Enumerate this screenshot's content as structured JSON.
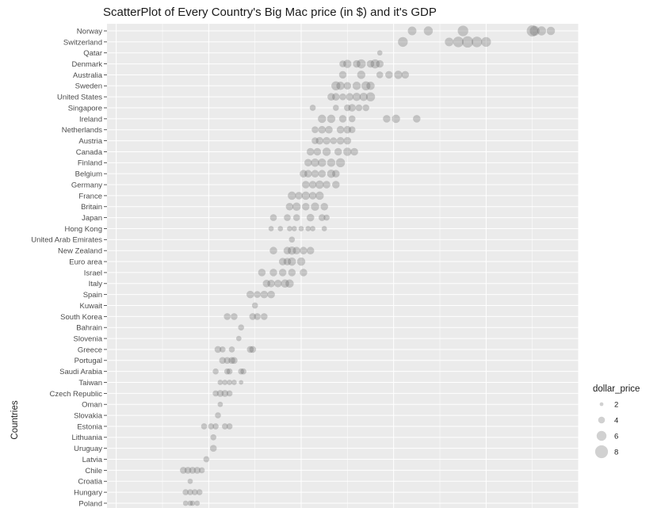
{
  "chart_data": {
    "type": "scatter",
    "title": "ScatterPlot of Every Country's Big Mac price (in $) and it's GDP",
    "xlabel": "",
    "ylabel": "Countries",
    "x_scale": {
      "min": 8000,
      "max": 110000,
      "gridlines": [
        10000,
        30000,
        50000,
        70000,
        90000,
        110000
      ]
    },
    "grid": true,
    "colors": {
      "panel": "#ebebeb",
      "grid": "#ffffff",
      "point": "#505050",
      "legend_point": "#bdbdbd"
    },
    "size_legend": {
      "title": "dollar_price",
      "values": [
        2,
        4,
        6,
        8
      ]
    },
    "categories": [
      "Norway",
      "Switzerland",
      "Qatar",
      "Denmark",
      "Australia",
      "Sweden",
      "United States",
      "Singapore",
      "Ireland",
      "Netherlands",
      "Austria",
      "Canada",
      "Finland",
      "Belgium",
      "Germany",
      "France",
      "Britain",
      "Japan",
      "Hong Kong",
      "United Arab Emirates",
      "New Zealand",
      "Euro area",
      "Israel",
      "Italy",
      "Spain",
      "Kuwait",
      "South Korea",
      "Bahrain",
      "Slovenia",
      "Greece",
      "Portugal",
      "Saudi Arabia",
      "Taiwan",
      "Czech Republic",
      "Oman",
      "Slovakia",
      "Estonia",
      "Lithuania",
      "Uruguay",
      "Latvia",
      "Chile",
      "Croatia",
      "Hungary",
      "Poland"
    ],
    "points": [
      {
        "c": "Norway",
        "gdp": 74000,
        "price": 5.2
      },
      {
        "c": "Norway",
        "gdp": 77500,
        "price": 5.5
      },
      {
        "c": "Norway",
        "gdp": 85000,
        "price": 6.5
      },
      {
        "c": "Norway",
        "gdp": 100000,
        "price": 7.0
      },
      {
        "c": "Norway",
        "gdp": 100500,
        "price": 6.0
      },
      {
        "c": "Norway",
        "gdp": 102000,
        "price": 5.5
      },
      {
        "c": "Norway",
        "gdp": 104000,
        "price": 5.0
      },
      {
        "c": "Switzerland",
        "gdp": 72000,
        "price": 6.0
      },
      {
        "c": "Switzerland",
        "gdp": 82000,
        "price": 5.2
      },
      {
        "c": "Switzerland",
        "gdp": 84000,
        "price": 6.5
      },
      {
        "c": "Switzerland",
        "gdp": 86000,
        "price": 7.0
      },
      {
        "c": "Switzerland",
        "gdp": 88000,
        "price": 6.5
      },
      {
        "c": "Switzerland",
        "gdp": 90000,
        "price": 6.0
      },
      {
        "c": "Qatar",
        "gdp": 67000,
        "price": 3.0
      },
      {
        "c": "Denmark",
        "gdp": 59000,
        "price": 4.0
      },
      {
        "c": "Denmark",
        "gdp": 60000,
        "price": 5.0
      },
      {
        "c": "Denmark",
        "gdp": 62000,
        "price": 4.5
      },
      {
        "c": "Denmark",
        "gdp": 63000,
        "price": 5.5
      },
      {
        "c": "Denmark",
        "gdp": 65000,
        "price": 4.5
      },
      {
        "c": "Denmark",
        "gdp": 66000,
        "price": 5.5
      },
      {
        "c": "Denmark",
        "gdp": 67000,
        "price": 4.5
      },
      {
        "c": "Australia",
        "gdp": 59000,
        "price": 4.5
      },
      {
        "c": "Australia",
        "gdp": 63000,
        "price": 5.0
      },
      {
        "c": "Australia",
        "gdp": 67000,
        "price": 4.0
      },
      {
        "c": "Australia",
        "gdp": 69000,
        "price": 4.5
      },
      {
        "c": "Australia",
        "gdp": 71000,
        "price": 5.0
      },
      {
        "c": "Australia",
        "gdp": 72500,
        "price": 4.5
      },
      {
        "c": "Sweden",
        "gdp": 57500,
        "price": 5.5
      },
      {
        "c": "Sweden",
        "gdp": 58500,
        "price": 5.0
      },
      {
        "c": "Sweden",
        "gdp": 60000,
        "price": 4.5
      },
      {
        "c": "Sweden",
        "gdp": 62000,
        "price": 5.0
      },
      {
        "c": "Sweden",
        "gdp": 64000,
        "price": 5.5
      },
      {
        "c": "Sweden",
        "gdp": 65000,
        "price": 5.0
      },
      {
        "c": "United States",
        "gdp": 56500,
        "price": 4.5
      },
      {
        "c": "United States",
        "gdp": 57500,
        "price": 4.5
      },
      {
        "c": "United States",
        "gdp": 59000,
        "price": 4.0
      },
      {
        "c": "United States",
        "gdp": 60500,
        "price": 4.5
      },
      {
        "c": "United States",
        "gdp": 62000,
        "price": 5.0
      },
      {
        "c": "United States",
        "gdp": 63500,
        "price": 5.0
      },
      {
        "c": "United States",
        "gdp": 65000,
        "price": 5.5
      },
      {
        "c": "Singapore",
        "gdp": 52500,
        "price": 3.5
      },
      {
        "c": "Singapore",
        "gdp": 57500,
        "price": 3.5
      },
      {
        "c": "Singapore",
        "gdp": 60000,
        "price": 4.0
      },
      {
        "c": "Singapore",
        "gdp": 61000,
        "price": 4.5
      },
      {
        "c": "Singapore",
        "gdp": 62500,
        "price": 4.0
      },
      {
        "c": "Singapore",
        "gdp": 64000,
        "price": 4.0
      },
      {
        "c": "Ireland",
        "gdp": 54500,
        "price": 5.0
      },
      {
        "c": "Ireland",
        "gdp": 56500,
        "price": 5.0
      },
      {
        "c": "Ireland",
        "gdp": 59000,
        "price": 4.5
      },
      {
        "c": "Ireland",
        "gdp": 61000,
        "price": 4.0
      },
      {
        "c": "Ireland",
        "gdp": 68500,
        "price": 4.5
      },
      {
        "c": "Ireland",
        "gdp": 70500,
        "price": 5.0
      },
      {
        "c": "Ireland",
        "gdp": 75000,
        "price": 4.5
      },
      {
        "c": "Netherlands",
        "gdp": 53000,
        "price": 4.0
      },
      {
        "c": "Netherlands",
        "gdp": 54500,
        "price": 4.5
      },
      {
        "c": "Netherlands",
        "gdp": 56000,
        "price": 4.5
      },
      {
        "c": "Netherlands",
        "gdp": 58500,
        "price": 4.5
      },
      {
        "c": "Netherlands",
        "gdp": 60000,
        "price": 4.5
      },
      {
        "c": "Netherlands",
        "gdp": 61000,
        "price": 4.0
      },
      {
        "c": "Austria",
        "gdp": 53000,
        "price": 4.0
      },
      {
        "c": "Austria",
        "gdp": 54000,
        "price": 4.5
      },
      {
        "c": "Austria",
        "gdp": 55500,
        "price": 4.5
      },
      {
        "c": "Austria",
        "gdp": 57000,
        "price": 4.0
      },
      {
        "c": "Austria",
        "gdp": 58500,
        "price": 4.5
      },
      {
        "c": "Austria",
        "gdp": 60000,
        "price": 4.5
      },
      {
        "c": "Canada",
        "gdp": 52000,
        "price": 4.5
      },
      {
        "c": "Canada",
        "gdp": 53500,
        "price": 4.5
      },
      {
        "c": "Canada",
        "gdp": 55500,
        "price": 5.0
      },
      {
        "c": "Canada",
        "gdp": 58000,
        "price": 4.5
      },
      {
        "c": "Canada",
        "gdp": 60000,
        "price": 5.0
      },
      {
        "c": "Canada",
        "gdp": 61500,
        "price": 4.5
      },
      {
        "c": "Finland",
        "gdp": 51500,
        "price": 4.5
      },
      {
        "c": "Finland",
        "gdp": 53000,
        "price": 5.0
      },
      {
        "c": "Finland",
        "gdp": 54500,
        "price": 5.0
      },
      {
        "c": "Finland",
        "gdp": 56500,
        "price": 5.0
      },
      {
        "c": "Finland",
        "gdp": 58500,
        "price": 5.5
      },
      {
        "c": "Belgium",
        "gdp": 50500,
        "price": 4.5
      },
      {
        "c": "Belgium",
        "gdp": 51500,
        "price": 4.5
      },
      {
        "c": "Belgium",
        "gdp": 53000,
        "price": 4.5
      },
      {
        "c": "Belgium",
        "gdp": 54500,
        "price": 4.5
      },
      {
        "c": "Belgium",
        "gdp": 56500,
        "price": 5.0
      },
      {
        "c": "Belgium",
        "gdp": 57500,
        "price": 4.5
      },
      {
        "c": "Germany",
        "gdp": 51000,
        "price": 4.5
      },
      {
        "c": "Germany",
        "gdp": 52500,
        "price": 4.5
      },
      {
        "c": "Germany",
        "gdp": 54000,
        "price": 5.0
      },
      {
        "c": "Germany",
        "gdp": 55500,
        "price": 4.5
      },
      {
        "c": "Germany",
        "gdp": 57500,
        "price": 4.5
      },
      {
        "c": "France",
        "gdp": 48000,
        "price": 5.0
      },
      {
        "c": "France",
        "gdp": 49500,
        "price": 4.5
      },
      {
        "c": "France",
        "gdp": 51000,
        "price": 5.0
      },
      {
        "c": "France",
        "gdp": 52500,
        "price": 4.5
      },
      {
        "c": "France",
        "gdp": 54000,
        "price": 5.0
      },
      {
        "c": "Britain",
        "gdp": 47500,
        "price": 4.5
      },
      {
        "c": "Britain",
        "gdp": 49000,
        "price": 5.0
      },
      {
        "c": "Britain",
        "gdp": 51000,
        "price": 4.5
      },
      {
        "c": "Britain",
        "gdp": 53000,
        "price": 5.0
      },
      {
        "c": "Britain",
        "gdp": 55000,
        "price": 4.5
      },
      {
        "c": "Japan",
        "gdp": 44000,
        "price": 4.0
      },
      {
        "c": "Japan",
        "gdp": 47000,
        "price": 4.0
      },
      {
        "c": "Japan",
        "gdp": 49000,
        "price": 4.0
      },
      {
        "c": "Japan",
        "gdp": 52000,
        "price": 4.5
      },
      {
        "c": "Japan",
        "gdp": 54500,
        "price": 4.0
      },
      {
        "c": "Japan",
        "gdp": 55500,
        "price": 3.5
      },
      {
        "c": "Hong Kong",
        "gdp": 43500,
        "price": 3.0
      },
      {
        "c": "Hong Kong",
        "gdp": 45500,
        "price": 3.0
      },
      {
        "c": "Hong Kong",
        "gdp": 47500,
        "price": 3.0
      },
      {
        "c": "Hong Kong",
        "gdp": 48500,
        "price": 3.0
      },
      {
        "c": "Hong Kong",
        "gdp": 50000,
        "price": 3.0
      },
      {
        "c": "Hong Kong",
        "gdp": 51500,
        "price": 3.0
      },
      {
        "c": "Hong Kong",
        "gdp": 52500,
        "price": 3.0
      },
      {
        "c": "Hong Kong",
        "gdp": 55000,
        "price": 3.0
      },
      {
        "c": "United Arab Emirates",
        "gdp": 48000,
        "price": 3.5
      },
      {
        "c": "New Zealand",
        "gdp": 44000,
        "price": 4.5
      },
      {
        "c": "New Zealand",
        "gdp": 47000,
        "price": 4.5
      },
      {
        "c": "New Zealand",
        "gdp": 48000,
        "price": 5.0
      },
      {
        "c": "New Zealand",
        "gdp": 49000,
        "price": 4.5
      },
      {
        "c": "New Zealand",
        "gdp": 50500,
        "price": 4.5
      },
      {
        "c": "New Zealand",
        "gdp": 52000,
        "price": 4.5
      },
      {
        "c": "Euro area",
        "gdp": 46000,
        "price": 4.5
      },
      {
        "c": "Euro area",
        "gdp": 47000,
        "price": 4.5
      },
      {
        "c": "Euro area",
        "gdp": 48000,
        "price": 5.0
      },
      {
        "c": "Euro area",
        "gdp": 50000,
        "price": 5.0
      },
      {
        "c": "Israel",
        "gdp": 41500,
        "price": 4.5
      },
      {
        "c": "Israel",
        "gdp": 44000,
        "price": 4.5
      },
      {
        "c": "Israel",
        "gdp": 46000,
        "price": 4.5
      },
      {
        "c": "Israel",
        "gdp": 48000,
        "price": 4.5
      },
      {
        "c": "Israel",
        "gdp": 50500,
        "price": 4.5
      },
      {
        "c": "Italy",
        "gdp": 42500,
        "price": 4.5
      },
      {
        "c": "Italy",
        "gdp": 43500,
        "price": 4.5
      },
      {
        "c": "Italy",
        "gdp": 45000,
        "price": 4.5
      },
      {
        "c": "Italy",
        "gdp": 46500,
        "price": 5.0
      },
      {
        "c": "Italy",
        "gdp": 47500,
        "price": 5.0
      },
      {
        "c": "Spain",
        "gdp": 39000,
        "price": 4.5
      },
      {
        "c": "Spain",
        "gdp": 40500,
        "price": 4.0
      },
      {
        "c": "Spain",
        "gdp": 42000,
        "price": 4.5
      },
      {
        "c": "Spain",
        "gdp": 43500,
        "price": 4.5
      },
      {
        "c": "Kuwait",
        "gdp": 40000,
        "price": 3.5
      },
      {
        "c": "South Korea",
        "gdp": 34000,
        "price": 4.0
      },
      {
        "c": "South Korea",
        "gdp": 35500,
        "price": 4.0
      },
      {
        "c": "South Korea",
        "gdp": 39500,
        "price": 4.0
      },
      {
        "c": "South Korea",
        "gdp": 40500,
        "price": 4.0
      },
      {
        "c": "South Korea",
        "gdp": 42000,
        "price": 4.0
      },
      {
        "c": "Bahrain",
        "gdp": 37000,
        "price": 3.5
      },
      {
        "c": "Slovenia",
        "gdp": 36500,
        "price": 3.0
      },
      {
        "c": "Greece",
        "gdp": 32000,
        "price": 4.0
      },
      {
        "c": "Greece",
        "gdp": 33000,
        "price": 3.5
      },
      {
        "c": "Greece",
        "gdp": 35000,
        "price": 3.5
      },
      {
        "c": "Greece",
        "gdp": 39000,
        "price": 4.0
      },
      {
        "c": "Greece",
        "gdp": 39500,
        "price": 4.0
      },
      {
        "c": "Portugal",
        "gdp": 33000,
        "price": 4.0
      },
      {
        "c": "Portugal",
        "gdp": 34000,
        "price": 4.0
      },
      {
        "c": "Portugal",
        "gdp": 35000,
        "price": 4.0
      },
      {
        "c": "Portugal",
        "gdp": 35500,
        "price": 4.0
      },
      {
        "c": "Saudi Arabia",
        "gdp": 31500,
        "price": 3.5
      },
      {
        "c": "Saudi Arabia",
        "gdp": 34000,
        "price": 3.5
      },
      {
        "c": "Saudi Arabia",
        "gdp": 34500,
        "price": 3.5
      },
      {
        "c": "Saudi Arabia",
        "gdp": 37000,
        "price": 3.5
      },
      {
        "c": "Saudi Arabia",
        "gdp": 37500,
        "price": 3.5
      },
      {
        "c": "Taiwan",
        "gdp": 32500,
        "price": 3.0
      },
      {
        "c": "Taiwan",
        "gdp": 33500,
        "price": 3.0
      },
      {
        "c": "Taiwan",
        "gdp": 34500,
        "price": 3.0
      },
      {
        "c": "Taiwan",
        "gdp": 35500,
        "price": 3.0
      },
      {
        "c": "Taiwan",
        "gdp": 37000,
        "price": 2.5
      },
      {
        "c": "Czech Republic",
        "gdp": 31500,
        "price": 3.5
      },
      {
        "c": "Czech Republic",
        "gdp": 32500,
        "price": 4.0
      },
      {
        "c": "Czech Republic",
        "gdp": 33500,
        "price": 4.0
      },
      {
        "c": "Czech Republic",
        "gdp": 34500,
        "price": 3.5
      },
      {
        "c": "Oman",
        "gdp": 32500,
        "price": 3.0
      },
      {
        "c": "Slovakia",
        "gdp": 32000,
        "price": 3.5
      },
      {
        "c": "Estonia",
        "gdp": 29000,
        "price": 3.5
      },
      {
        "c": "Estonia",
        "gdp": 30500,
        "price": 3.5
      },
      {
        "c": "Estonia",
        "gdp": 31500,
        "price": 3.5
      },
      {
        "c": "Estonia",
        "gdp": 33500,
        "price": 3.5
      },
      {
        "c": "Estonia",
        "gdp": 34500,
        "price": 3.5
      },
      {
        "c": "Lithuania",
        "gdp": 31000,
        "price": 3.5
      },
      {
        "c": "Uruguay",
        "gdp": 31000,
        "price": 4.0
      },
      {
        "c": "Latvia",
        "gdp": 29500,
        "price": 3.5
      },
      {
        "c": "Chile",
        "gdp": 24500,
        "price": 4.0
      },
      {
        "c": "Chile",
        "gdp": 25500,
        "price": 4.0
      },
      {
        "c": "Chile",
        "gdp": 26500,
        "price": 4.0
      },
      {
        "c": "Chile",
        "gdp": 27500,
        "price": 4.0
      },
      {
        "c": "Chile",
        "gdp": 28500,
        "price": 3.5
      },
      {
        "c": "Croatia",
        "gdp": 26000,
        "price": 3.0
      },
      {
        "c": "Hungary",
        "gdp": 25000,
        "price": 3.5
      },
      {
        "c": "Hungary",
        "gdp": 26000,
        "price": 3.5
      },
      {
        "c": "Hungary",
        "gdp": 27000,
        "price": 3.5
      },
      {
        "c": "Hungary",
        "gdp": 28000,
        "price": 3.5
      },
      {
        "c": "Poland",
        "gdp": 25000,
        "price": 3.0
      },
      {
        "c": "Poland",
        "gdp": 26000,
        "price": 3.0
      },
      {
        "c": "Poland",
        "gdp": 26500,
        "price": 3.0
      },
      {
        "c": "Poland",
        "gdp": 27500,
        "price": 3.0
      }
    ]
  }
}
